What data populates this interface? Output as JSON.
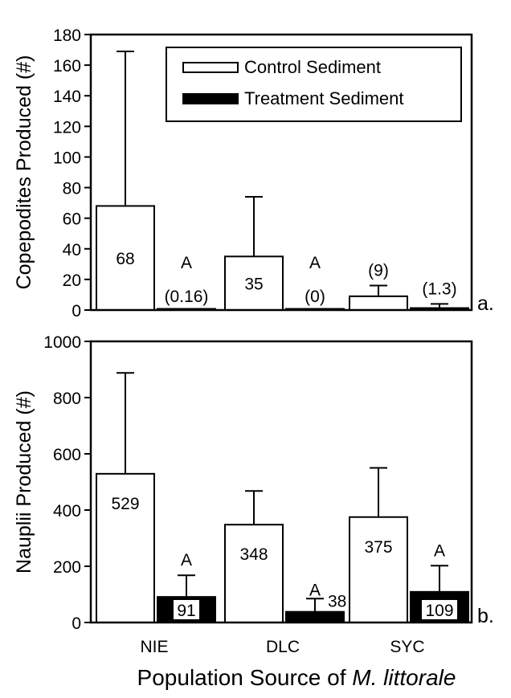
{
  "chart_data": [
    {
      "type": "bar",
      "panel_label": "a.",
      "ylabel": "Copepodites Produced (#)",
      "ylim": [
        0,
        180
      ],
      "yticks": [
        0,
        20,
        40,
        60,
        80,
        100,
        120,
        140,
        160,
        180
      ],
      "categories": [
        "NIE",
        "DLC",
        "SYC"
      ],
      "series": [
        {
          "name": "Control Sediment",
          "fill": "#ffffff",
          "values": [
            68,
            35,
            9
          ],
          "error_upper": [
            169,
            74,
            16
          ],
          "data_labels": [
            "68",
            "35",
            "(9)"
          ],
          "sig_letters": [
            "",
            "",
            ""
          ]
        },
        {
          "name": "Treatment Sediment",
          "fill": "#000000",
          "values": [
            0.16,
            0,
            1.3
          ],
          "error_upper": [
            0.16,
            0,
            4
          ],
          "data_labels": [
            "(0.16)",
            "(0)",
            "(1.3)"
          ],
          "sig_letters": [
            "A",
            "A",
            ""
          ]
        }
      ],
      "legend": "top-right",
      "grid": false
    },
    {
      "type": "bar",
      "panel_label": "b.",
      "ylabel": "Nauplii Produced (#)",
      "ylim": [
        0,
        1000
      ],
      "yticks": [
        0,
        200,
        400,
        600,
        800,
        1000
      ],
      "categories": [
        "NIE",
        "DLC",
        "SYC"
      ],
      "series": [
        {
          "name": "Control Sediment",
          "fill": "#ffffff",
          "values": [
            529,
            348,
            375
          ],
          "error_upper": [
            888,
            468,
            550
          ],
          "data_labels": [
            "529",
            "348",
            "375"
          ],
          "sig_letters": [
            "",
            "",
            ""
          ]
        },
        {
          "name": "Treatment Sediment",
          "fill": "#000000",
          "values": [
            91,
            38,
            109
          ],
          "error_upper": [
            168,
            85,
            202
          ],
          "data_labels": [
            "91",
            "38",
            "109"
          ],
          "sig_letters": [
            "A",
            "A",
            "A"
          ]
        }
      ],
      "legend": "none",
      "grid": false
    }
  ],
  "xlabel_prefix": "Population Source of ",
  "xlabel_species": "M. littorale"
}
